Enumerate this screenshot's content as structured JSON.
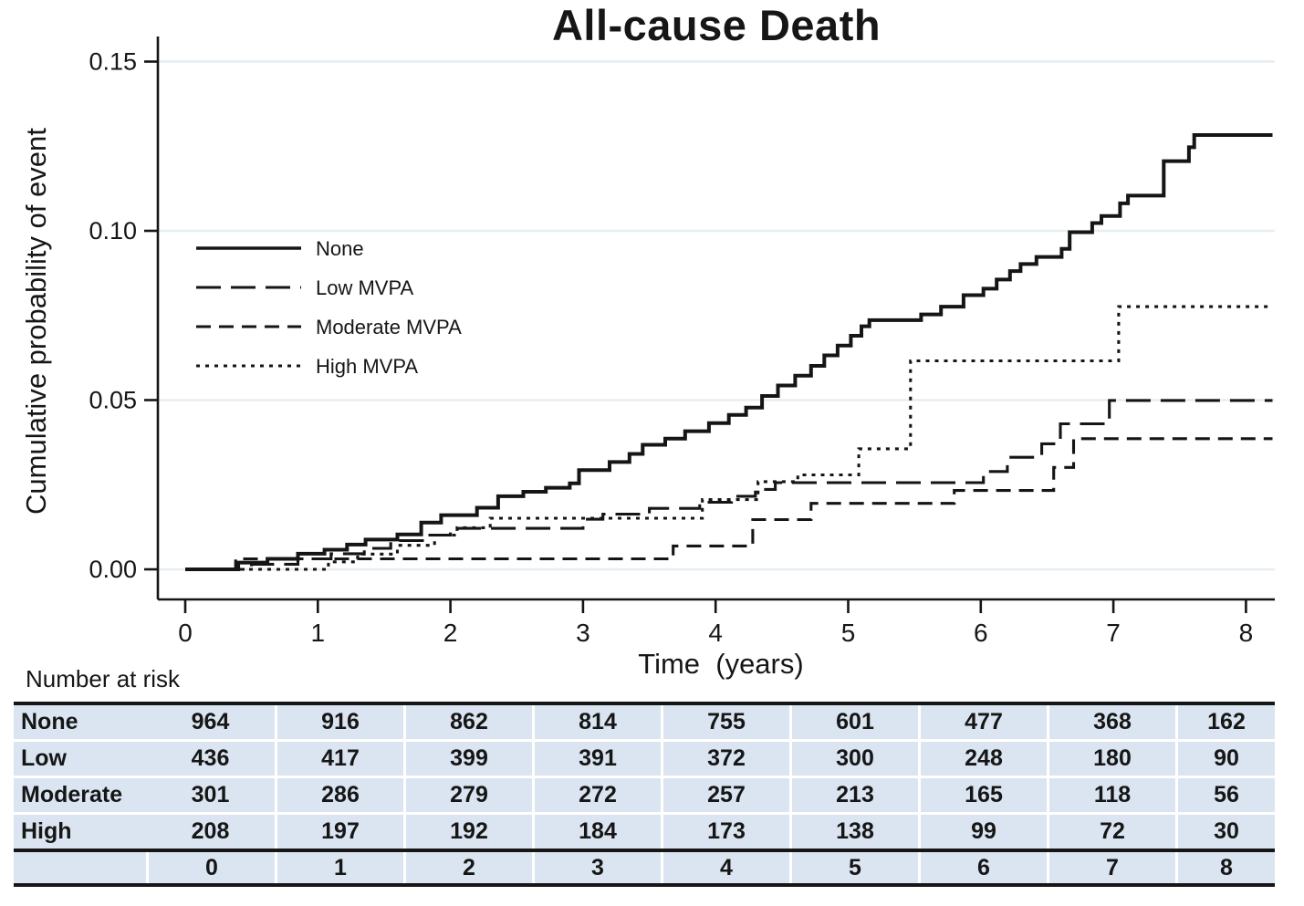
{
  "figure": {
    "title": "All-cause Death",
    "y_axis_label": "Cumulative probability of event",
    "x_axis_label": "Time  (years)"
  },
  "chart_data": {
    "type": "line",
    "subtype": "cumulative-incidence-step",
    "title": "All-cause Death",
    "xlabel": "Time (years)",
    "ylabel": "Cumulative probability of event",
    "xlim": [
      0,
      8.2
    ],
    "ylim": [
      0,
      0.155
    ],
    "x_ticks": [
      0,
      1,
      2,
      3,
      4,
      5,
      6,
      7,
      8
    ],
    "y_ticks": {
      "values": [
        0,
        0.05,
        0.1,
        0.15
      ],
      "labels": [
        "0.00",
        "0.05",
        "0.10",
        "0.15"
      ]
    },
    "grid": "horizontal",
    "legend_position": "upper-left-inside",
    "line_color": "#151515",
    "grid_color": "#e6eef3",
    "series": [
      {
        "name": "None",
        "line_style": "solid",
        "steps": [
          [
            0,
            0
          ],
          [
            0.4,
            0.002
          ],
          [
            0.62,
            0.0031
          ],
          [
            0.85,
            0.0046
          ],
          [
            1.05,
            0.0058
          ],
          [
            1.22,
            0.0073
          ],
          [
            1.36,
            0.0088
          ],
          [
            1.6,
            0.0103
          ],
          [
            1.78,
            0.0138
          ],
          [
            1.93,
            0.016
          ],
          [
            2.2,
            0.0182
          ],
          [
            2.36,
            0.0216
          ],
          [
            2.55,
            0.0229
          ],
          [
            2.72,
            0.0241
          ],
          [
            2.9,
            0.0254
          ],
          [
            2.97,
            0.0293
          ],
          [
            3.2,
            0.0317
          ],
          [
            3.35,
            0.0341
          ],
          [
            3.45,
            0.0368
          ],
          [
            3.62,
            0.0386
          ],
          [
            3.77,
            0.0408
          ],
          [
            3.95,
            0.0432
          ],
          [
            4.1,
            0.0456
          ],
          [
            4.23,
            0.0478
          ],
          [
            4.35,
            0.0512
          ],
          [
            4.47,
            0.0543
          ],
          [
            4.6,
            0.0572
          ],
          [
            4.72,
            0.0601
          ],
          [
            4.82,
            0.0632
          ],
          [
            4.92,
            0.0661
          ],
          [
            5.02,
            0.069
          ],
          [
            5.1,
            0.0718
          ],
          [
            5.16,
            0.0736
          ],
          [
            5.55,
            0.0753
          ],
          [
            5.7,
            0.0776
          ],
          [
            5.87,
            0.081
          ],
          [
            6.02,
            0.0829
          ],
          [
            6.12,
            0.0856
          ],
          [
            6.22,
            0.0881
          ],
          [
            6.3,
            0.0902
          ],
          [
            6.42,
            0.0923
          ],
          [
            6.61,
            0.0947
          ],
          [
            6.67,
            0.0996
          ],
          [
            6.84,
            0.1023
          ],
          [
            6.91,
            0.1044
          ],
          [
            7.05,
            0.1081
          ],
          [
            7.11,
            0.1104
          ],
          [
            7.38,
            0.1206
          ],
          [
            7.57,
            0.1247
          ],
          [
            7.61,
            0.1283
          ],
          [
            8.2,
            0.1283
          ]
        ]
      },
      {
        "name": "Low MVPA",
        "line_style": "long-dash",
        "steps": [
          [
            0,
            0
          ],
          [
            0.5,
            0.0015
          ],
          [
            0.85,
            0.0031
          ],
          [
            1.1,
            0.0046
          ],
          [
            1.35,
            0.0062
          ],
          [
            1.55,
            0.0085
          ],
          [
            1.8,
            0.0101
          ],
          [
            2.0,
            0.0121
          ],
          [
            3.0,
            0.0148
          ],
          [
            3.15,
            0.0163
          ],
          [
            3.5,
            0.018
          ],
          [
            3.88,
            0.0198
          ],
          [
            4.12,
            0.0216
          ],
          [
            4.3,
            0.0236
          ],
          [
            4.45,
            0.0256
          ],
          [
            6.02,
            0.0289
          ],
          [
            6.2,
            0.0331
          ],
          [
            6.46,
            0.0371
          ],
          [
            6.6,
            0.043
          ],
          [
            6.97,
            0.0499
          ],
          [
            8.2,
            0.0499
          ]
        ]
      },
      {
        "name": "Moderate MVPA",
        "line_style": "dash",
        "steps": [
          [
            0,
            0
          ],
          [
            0.38,
            0.0031
          ],
          [
            3.68,
            0.0069
          ],
          [
            4.28,
            0.0147
          ],
          [
            4.72,
            0.0195
          ],
          [
            5.8,
            0.0233
          ],
          [
            6.55,
            0.0301
          ],
          [
            6.7,
            0.0386
          ],
          [
            8.2,
            0.0386
          ]
        ]
      },
      {
        "name": "High MVPA",
        "line_style": "dot",
        "steps": [
          [
            0,
            0
          ],
          [
            1.08,
            0.0022
          ],
          [
            1.3,
            0.0045
          ],
          [
            1.6,
            0.0071
          ],
          [
            1.88,
            0.0101
          ],
          [
            2.05,
            0.0123
          ],
          [
            2.3,
            0.0151
          ],
          [
            3.9,
            0.0206
          ],
          [
            4.32,
            0.0259
          ],
          [
            4.62,
            0.0279
          ],
          [
            5.08,
            0.0356
          ],
          [
            5.47,
            0.0616
          ],
          [
            7.04,
            0.0776
          ],
          [
            8.2,
            0.0776
          ]
        ]
      }
    ]
  },
  "risk_table": {
    "title": "Number at risk",
    "time_values": [
      "0",
      "1",
      "2",
      "3",
      "4",
      "5",
      "6",
      "7",
      "8"
    ],
    "rows": [
      {
        "label": "None",
        "values": [
          "964",
          "916",
          "862",
          "814",
          "755",
          "601",
          "477",
          "368",
          "162"
        ]
      },
      {
        "label": "Low",
        "values": [
          "436",
          "417",
          "399",
          "391",
          "372",
          "300",
          "248",
          "180",
          "90"
        ]
      },
      {
        "label": "Moderate",
        "values": [
          "301",
          "286",
          "279",
          "272",
          "257",
          "213",
          "165",
          "118",
          "56"
        ]
      },
      {
        "label": "High",
        "values": [
          "208",
          "197",
          "192",
          "184",
          "173",
          "138",
          "99",
          "72",
          "30"
        ]
      }
    ],
    "row_color": "#dbe5f1"
  }
}
